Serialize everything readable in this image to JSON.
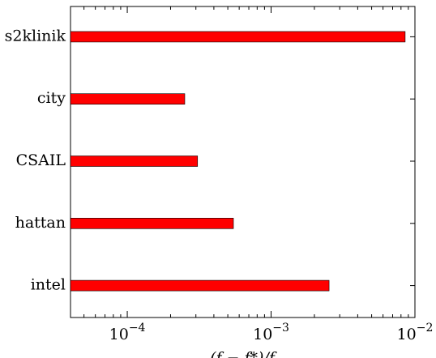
{
  "chart_data": {
    "type": "bar",
    "orientation": "horizontal",
    "categories": [
      "s2klinik",
      "city",
      "CSAIL",
      "hattan",
      "intel"
    ],
    "values": [
      0.00855,
      0.000251,
      0.000308,
      0.000547,
      0.00253
    ],
    "color": "#ff0000",
    "xlabel": "(f − f*)/f",
    "xscale": "log",
    "xlim": [
      4.03e-05,
      0.01
    ],
    "xticks": [
      {
        "value": 0.0001,
        "label": "10",
        "exponent": "−4"
      },
      {
        "value": 0.001,
        "label": "10",
        "exponent": "−3"
      },
      {
        "value": 0.01,
        "label": "10",
        "exponent": "−2"
      }
    ],
    "grid": false
  }
}
